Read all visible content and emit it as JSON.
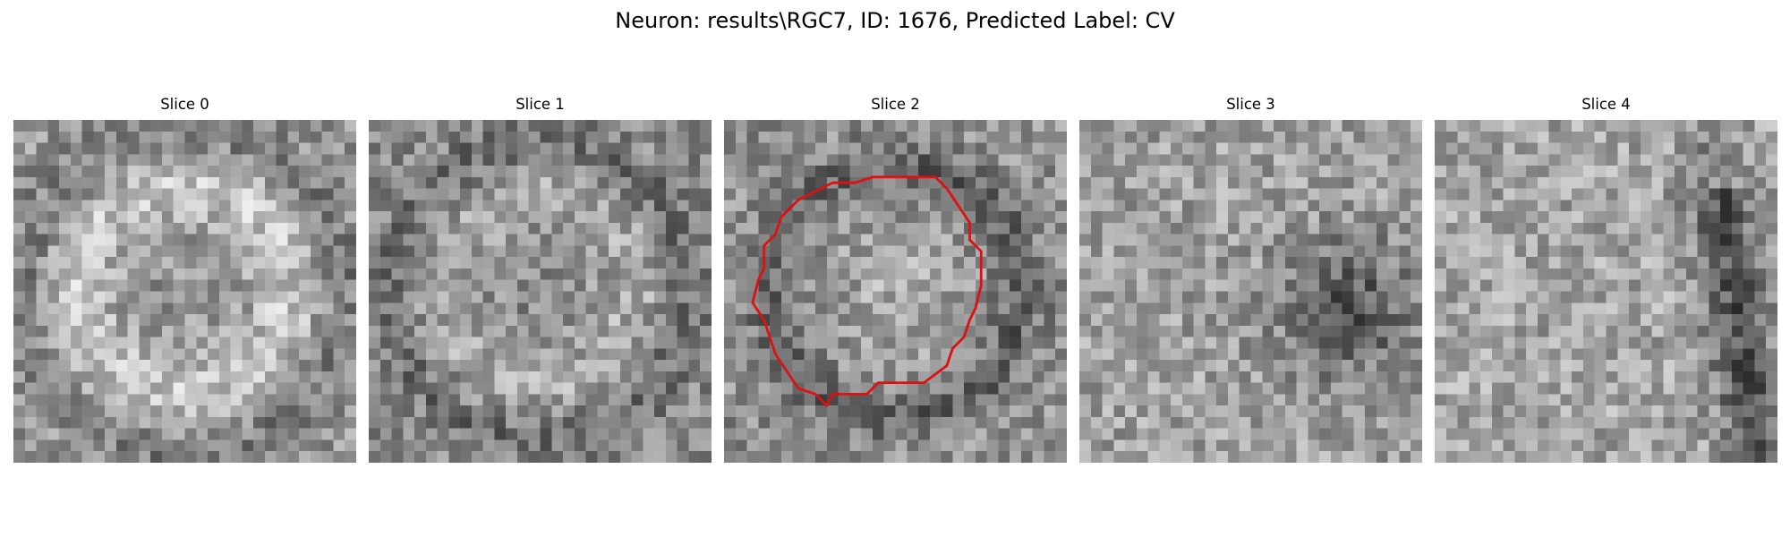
{
  "figure": {
    "title": "Neuron: results\\RGC7, ID: 1676, Predicted Label: CV"
  },
  "slices": [
    {
      "label": "Slice 0",
      "seed": 11,
      "pattern": "ring",
      "has_contour": false
    },
    {
      "label": "Slice 1",
      "seed": 23,
      "pattern": "ring-noisy",
      "has_contour": false
    },
    {
      "label": "Slice 2",
      "seed": 37,
      "pattern": "ring-dark",
      "has_contour": true
    },
    {
      "label": "Slice 3",
      "seed": 53,
      "pattern": "dark-right",
      "has_contour": false
    },
    {
      "label": "Slice 4",
      "seed": 71,
      "pattern": "dark-edge-right",
      "has_contour": false
    }
  ],
  "contour": {
    "color": "#dd1111",
    "points": [
      [
        14.5,
        5.0
      ],
      [
        18.5,
        5.0
      ],
      [
        19.5,
        6.0
      ],
      [
        20.5,
        7.5
      ],
      [
        21.5,
        9.0
      ],
      [
        21.5,
        10.5
      ],
      [
        22.5,
        11.5
      ],
      [
        22.5,
        14.5
      ],
      [
        22.0,
        16.5
      ],
      [
        21.5,
        17.5
      ],
      [
        21.0,
        19.0
      ],
      [
        20.0,
        20.0
      ],
      [
        19.5,
        21.5
      ],
      [
        17.5,
        23.0
      ],
      [
        13.5,
        23.0
      ],
      [
        12.5,
        24.0
      ],
      [
        11.0,
        24.0
      ],
      [
        9.5,
        24.0
      ],
      [
        9.0,
        25.0
      ],
      [
        8.0,
        24.0
      ],
      [
        6.5,
        23.5
      ],
      [
        5.5,
        22.0
      ],
      [
        4.5,
        20.5
      ],
      [
        4.0,
        19.0
      ],
      [
        3.5,
        17.5
      ],
      [
        2.5,
        16.0
      ],
      [
        3.0,
        14.0
      ],
      [
        3.5,
        13.0
      ],
      [
        3.5,
        11.0
      ],
      [
        4.5,
        10.0
      ],
      [
        5.0,
        8.5
      ],
      [
        6.5,
        7.0
      ],
      [
        8.5,
        6.0
      ],
      [
        9.5,
        5.5
      ],
      [
        11.5,
        5.5
      ],
      [
        13.0,
        5.0
      ]
    ]
  }
}
